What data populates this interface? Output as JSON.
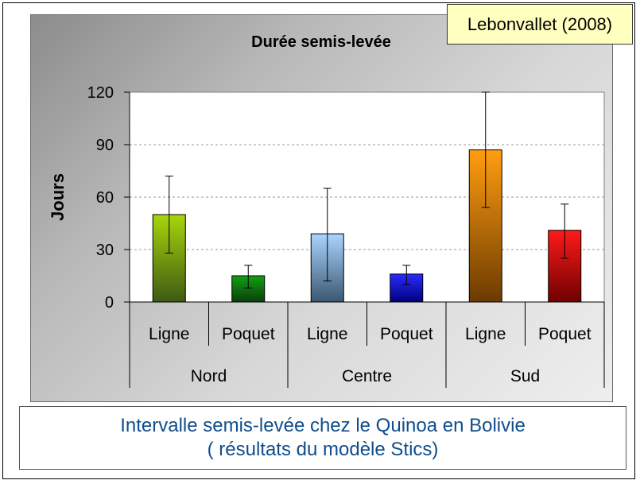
{
  "source_label": "Lebonvallet (2008)",
  "caption": {
    "line1": "Intervalle semis-levée chez le Quinoa en Bolivie",
    "line2": "( résultats du modèle Stics)"
  },
  "chart_data": {
    "type": "bar",
    "title": "Durée semis-levée",
    "ylabel": "Jours",
    "xlabel": "",
    "ylim": [
      0,
      120
    ],
    "yticks": [
      0,
      30,
      60,
      90,
      120
    ],
    "grid": "horizontal dashed",
    "groups": [
      "Nord",
      "Centre",
      "Sud"
    ],
    "categories": [
      "Ligne",
      "Poquet",
      "Ligne",
      "Poquet",
      "Ligne",
      "Poquet"
    ],
    "values": [
      50,
      15,
      39,
      16,
      87,
      41
    ],
    "error_low": [
      28,
      8,
      12,
      10,
      54,
      25
    ],
    "error_high": [
      72,
      21,
      65,
      21,
      120,
      56
    ],
    "colors": [
      {
        "top": "#a8d50a",
        "bottom": "#3e5a12"
      },
      {
        "top": "#12a012",
        "bottom": "#0b3d0b"
      },
      {
        "top": "#aad4ff",
        "bottom": "#3b5770"
      },
      {
        "top": "#2a2aff",
        "bottom": "#00007a"
      },
      {
        "top": "#ff9d10",
        "bottom": "#6b3a00"
      },
      {
        "top": "#ff1a1a",
        "bottom": "#6e0000"
      }
    ]
  }
}
